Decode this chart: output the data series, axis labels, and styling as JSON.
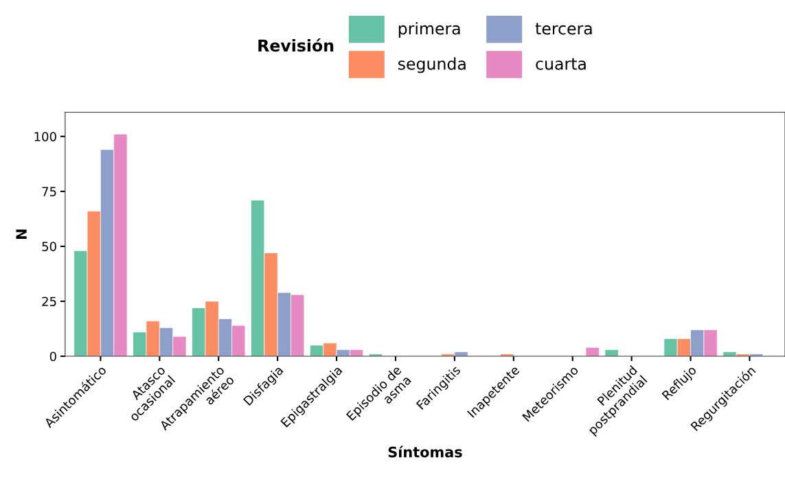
{
  "chart_data": {
    "type": "bar",
    "xlabel": "Síntomas",
    "ylabel": "N",
    "legend_title": "Revisión",
    "legend": "top",
    "categories": [
      "Asintomático",
      "Atasco\nocasional",
      "Atrapamiento\naéreo",
      "Disfagia",
      "Epigastralgia",
      "Episodio de\nasma",
      "Faringitis",
      "Inapetente",
      "Meteorismo",
      "Plenitud\npostprandial",
      "Reflujo",
      "Regurgitación"
    ],
    "ylim": [
      0,
      111
    ],
    "yticks": [
      0,
      25,
      50,
      75,
      100
    ],
    "grid": false,
    "series": [
      {
        "name": "primera",
        "color": "#66c2a5",
        "values": [
          48,
          11,
          22,
          71,
          5,
          1,
          null,
          null,
          null,
          3,
          8,
          2
        ]
      },
      {
        "name": "segunda",
        "color": "#fc8d62",
        "values": [
          66,
          16,
          25,
          47,
          6,
          null,
          1,
          1,
          null,
          null,
          8,
          1
        ]
      },
      {
        "name": "tercera",
        "color": "#8da0cb",
        "values": [
          94,
          13,
          17,
          29,
          3,
          null,
          2,
          null,
          null,
          null,
          12,
          1
        ]
      },
      {
        "name": "cuarta",
        "color": "#e78ac3",
        "values": [
          101,
          9,
          14,
          28,
          3,
          null,
          null,
          null,
          4,
          null,
          12,
          null
        ]
      }
    ]
  }
}
